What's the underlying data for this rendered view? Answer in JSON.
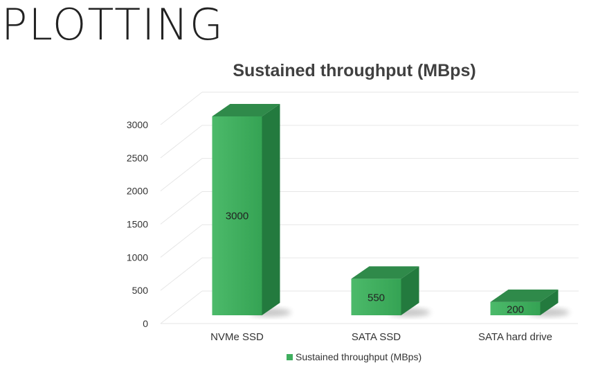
{
  "slide": {
    "title": "PLOTTING"
  },
  "chart_data": {
    "type": "bar",
    "title": "Sustained throughput (MBps)",
    "categories": [
      "NVMe SSD",
      "SATA SSD",
      "SATA hard drive"
    ],
    "series": [
      {
        "name": "Sustained throughput (MBps)",
        "values": [
          3000,
          550,
          200
        ],
        "color": "#3fae5e"
      }
    ],
    "yticks": [
      0,
      500,
      1000,
      1500,
      2000,
      2500,
      3000
    ],
    "ylim": [
      0,
      3000
    ],
    "data_labels": [
      "3000",
      "550",
      "200"
    ],
    "legend": "bottom",
    "grid": true,
    "style": "3d-column"
  }
}
